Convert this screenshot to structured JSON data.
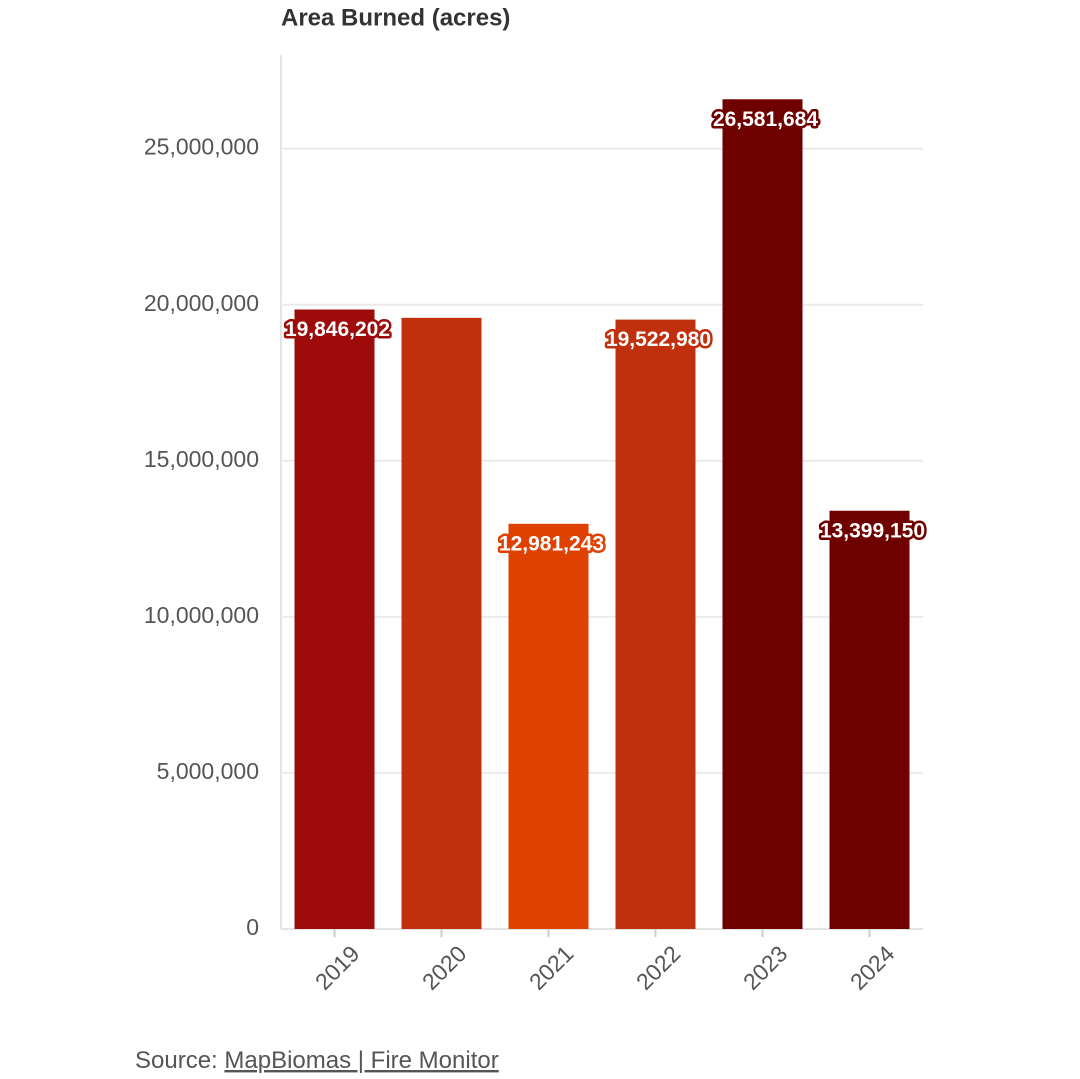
{
  "chart_data": {
    "type": "bar",
    "title": "Area Burned (acres)",
    "categories": [
      "2019",
      "2020",
      "2021",
      "2022",
      "2023",
      "2024"
    ],
    "values": [
      19846202,
      19580000,
      12981243,
      19522980,
      26581684,
      13399150
    ],
    "value_labels": [
      "19,846,202",
      null,
      "12,981,243",
      "19,522,980",
      "26,581,684",
      "13,399,150"
    ],
    "colors": [
      "#9e0b0b",
      "#c0300c",
      "#de4100",
      "#c0300c",
      "#6e0000",
      "#6e0000"
    ],
    "ylim": [
      0,
      28000000
    ],
    "yticks": [
      0,
      {
        "value": 5000000,
        "label": "5,000,000"
      },
      {
        "value": 10000000,
        "label": "10,000,000"
      },
      {
        "value": 15000000,
        "label": "15,000,000"
      },
      {
        "value": 20000000,
        "label": "20,000,000"
      },
      {
        "value": 25000000,
        "label": "25,000,000"
      }
    ],
    "grid": true,
    "source_prefix": "Source:",
    "source_link": "MapBiomas | Fire Monitor"
  }
}
